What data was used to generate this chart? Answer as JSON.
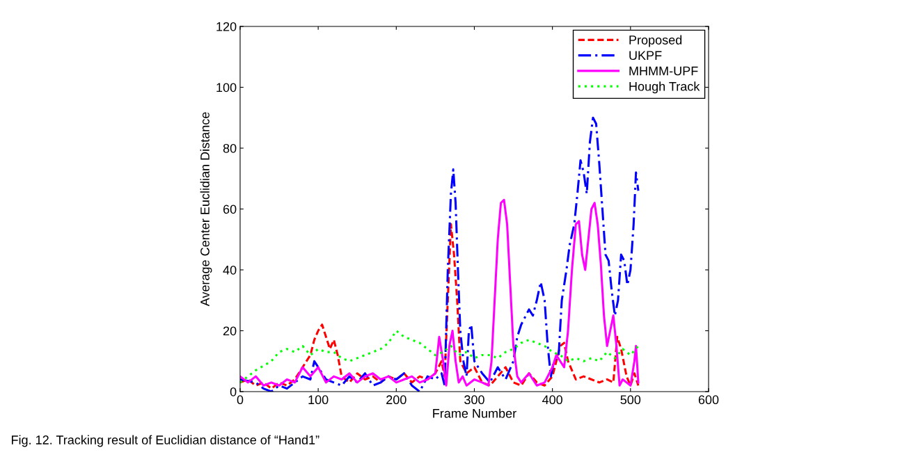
{
  "chart_data": {
    "type": "line",
    "xlabel": "Frame Number",
    "ylabel": "Average Center Euclidian Distance",
    "xlim": [
      0,
      600
    ],
    "xticks": [
      0,
      100,
      200,
      300,
      400,
      500,
      600
    ],
    "ylim": [
      0,
      120
    ],
    "yticks": [
      0,
      20,
      40,
      60,
      80,
      100,
      120
    ],
    "grid": false,
    "legend": "top right",
    "marker": "none",
    "annotations": [
      "Fig. 12. Tracking result of Euclidian distance of “Hand1”"
    ],
    "series": [
      {
        "name": "Proposed",
        "color": "#ff0000",
        "line_style": "dashed",
        "x": [
          0,
          10,
          20,
          30,
          40,
          50,
          60,
          70,
          80,
          90,
          95,
          100,
          105,
          110,
          115,
          120,
          125,
          130,
          140,
          150,
          160,
          170,
          180,
          190,
          200,
          210,
          220,
          230,
          240,
          250,
          258,
          262,
          266,
          270,
          274,
          278,
          282,
          290,
          300,
          310,
          320,
          330,
          340,
          350,
          360,
          370,
          380,
          390,
          400,
          410,
          415,
          420,
          430,
          440,
          450,
          460,
          470,
          478,
          483,
          488,
          495,
          500,
          505,
          510
        ],
        "values": [
          3,
          4,
          2,
          3,
          1,
          3,
          2,
          4,
          8,
          12,
          17,
          20,
          22,
          18,
          14,
          17,
          12,
          5,
          3,
          6,
          4,
          5,
          3,
          5,
          4,
          6,
          3,
          5,
          4,
          6,
          10,
          5,
          30,
          55,
          45,
          30,
          10,
          6,
          8,
          3,
          2,
          5,
          8,
          3,
          2,
          6,
          3,
          2,
          5,
          15,
          16,
          10,
          4,
          5,
          4,
          3,
          4,
          3,
          18,
          14,
          5,
          2,
          6,
          2
        ]
      },
      {
        "name": "UKPF",
        "color": "#0000ff",
        "line_style": "dashdot",
        "x": [
          0,
          20,
          30,
          40,
          50,
          60,
          70,
          80,
          90,
          95,
          100,
          110,
          120,
          130,
          140,
          150,
          160,
          170,
          180,
          190,
          200,
          210,
          220,
          230,
          240,
          250,
          258,
          262,
          266,
          270,
          273,
          276,
          279,
          282,
          286,
          290,
          293,
          296,
          300,
          310,
          320,
          330,
          340,
          350,
          355,
          360,
          370,
          375,
          380,
          385,
          390,
          394,
          398,
          402,
          408,
          412,
          418,
          422,
          428,
          432,
          436,
          440,
          444,
          448,
          452,
          456,
          460,
          464,
          468,
          472,
          476,
          480,
          484,
          488,
          492,
          496,
          500,
          504,
          507,
          510
        ],
        "values": [
          4,
          3,
          1,
          0,
          2,
          1,
          3,
          5,
          4,
          10,
          8,
          4,
          3,
          2,
          5,
          3,
          6,
          2,
          3,
          5,
          4,
          6,
          2,
          0,
          5,
          4,
          6,
          2,
          40,
          65,
          73,
          62,
          40,
          20,
          10,
          5,
          20,
          22,
          10,
          6,
          3,
          8,
          4,
          10,
          18,
          22,
          27,
          25,
          30,
          36,
          30,
          15,
          5,
          10,
          12,
          30,
          40,
          48,
          55,
          65,
          76,
          72,
          65,
          82,
          90,
          88,
          75,
          60,
          45,
          43,
          33,
          25,
          30,
          45,
          43,
          35,
          40,
          55,
          72,
          66
        ]
      },
      {
        "name": "MHMM-UPF",
        "color": "#ff00ff",
        "line_style": "solid",
        "x": [
          0,
          10,
          20,
          30,
          40,
          50,
          60,
          70,
          80,
          90,
          100,
          110,
          120,
          130,
          140,
          150,
          160,
          170,
          180,
          190,
          200,
          210,
          220,
          230,
          240,
          250,
          255,
          260,
          264,
          268,
          272,
          276,
          280,
          285,
          290,
          300,
          310,
          318,
          322,
          326,
          330,
          334,
          338,
          342,
          346,
          350,
          355,
          360,
          370,
          380,
          390,
          400,
          405,
          410,
          415,
          420,
          425,
          430,
          434,
          438,
          442,
          446,
          450,
          454,
          458,
          462,
          466,
          470,
          474,
          478,
          482,
          486,
          490,
          495,
          500,
          505,
          507,
          510
        ],
        "values": [
          5,
          3,
          5,
          2,
          3,
          2,
          4,
          3,
          8,
          5,
          8,
          3,
          5,
          4,
          6,
          3,
          5,
          6,
          4,
          5,
          3,
          4,
          5,
          3,
          4,
          6,
          18,
          10,
          2,
          15,
          20,
          10,
          3,
          5,
          2,
          4,
          3,
          2,
          10,
          30,
          50,
          62,
          63,
          55,
          35,
          15,
          5,
          3,
          6,
          2,
          3,
          8,
          12,
          10,
          8,
          20,
          40,
          55,
          56,
          45,
          40,
          50,
          60,
          62,
          55,
          42,
          25,
          15,
          20,
          25,
          15,
          2,
          4,
          3,
          2,
          10,
          15,
          3
        ]
      },
      {
        "name": "Hough Track",
        "color": "#00ff00",
        "line_style": "dotted",
        "x": [
          0,
          20,
          40,
          50,
          60,
          70,
          80,
          90,
          100,
          110,
          120,
          130,
          140,
          150,
          160,
          170,
          180,
          190,
          200,
          210,
          220,
          230,
          240,
          250,
          260,
          270,
          280,
          290,
          300,
          310,
          320,
          330,
          340,
          350,
          360,
          370,
          380,
          390,
          400,
          410,
          420,
          430,
          440,
          450,
          460,
          470,
          480,
          490,
          500,
          510
        ],
        "values": [
          3,
          7,
          10,
          13,
          14,
          13,
          15,
          12,
          14,
          13,
          13,
          11,
          10,
          11,
          12,
          13,
          14,
          16,
          20,
          18,
          17,
          16,
          14,
          12,
          13,
          15,
          12,
          13,
          11,
          12,
          12,
          11,
          13,
          14,
          16,
          17,
          16,
          15,
          13,
          12,
          10,
          11,
          10,
          11,
          10,
          13,
          11,
          14,
          12,
          15
        ]
      }
    ]
  }
}
